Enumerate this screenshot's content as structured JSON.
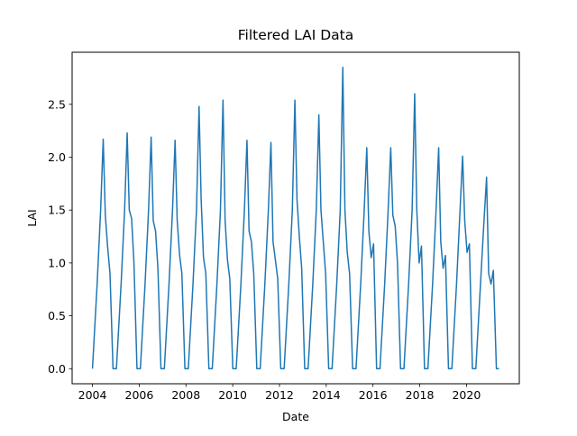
{
  "chart_data": {
    "type": "line",
    "title": "Filtered LAI Data",
    "x_label": "Date",
    "y_label": "LAI",
    "x": [
      2004.0,
      2004.2,
      2004.35,
      2004.46,
      2004.55,
      2004.65,
      2004.75,
      2004.88,
      2005.025,
      2005.225,
      2005.375,
      2005.485,
      2005.575,
      2005.675,
      2005.775,
      2005.905,
      2006.05,
      2006.25,
      2006.4,
      2006.51,
      2006.6,
      2006.7,
      2006.8,
      2006.93,
      2007.075,
      2007.275,
      2007.425,
      2007.535,
      2007.625,
      2007.725,
      2007.825,
      2007.955,
      2008.1,
      2008.3,
      2008.45,
      2008.56,
      2008.65,
      2008.75,
      2008.85,
      2008.98,
      2009.125,
      2009.325,
      2009.475,
      2009.585,
      2009.675,
      2009.775,
      2009.875,
      2010.005,
      2010.15,
      2010.35,
      2010.5,
      2010.61,
      2010.7,
      2010.8,
      2010.9,
      2011.03,
      2011.175,
      2011.375,
      2011.525,
      2011.635,
      2011.725,
      2011.825,
      2011.925,
      2012.055,
      2012.2,
      2012.4,
      2012.55,
      2012.66,
      2012.75,
      2012.85,
      2012.95,
      2013.08,
      2013.225,
      2013.425,
      2013.575,
      2013.685,
      2013.775,
      2013.875,
      2013.975,
      2014.105,
      2014.25,
      2014.45,
      2014.6,
      2014.71,
      2014.8,
      2014.9,
      2015.0,
      2015.13,
      2015.275,
      2015.475,
      2015.625,
      2015.735,
      2015.825,
      2015.925,
      2016.025,
      2016.155,
      2016.3,
      2016.5,
      2016.65,
      2016.76,
      2016.85,
      2016.95,
      2017.05,
      2017.18,
      2017.325,
      2017.525,
      2017.675,
      2017.785,
      2017.875,
      2017.975,
      2018.075,
      2018.205,
      2018.35,
      2018.55,
      2018.7,
      2018.81,
      2018.9,
      2019.0,
      2019.1,
      2019.23,
      2019.375,
      2019.575,
      2019.725,
      2019.835,
      2019.925,
      2020.025,
      2020.125,
      2020.255,
      2020.4,
      2020.6,
      2020.75,
      2020.86,
      2020.95,
      2021.05,
      2021.15,
      2021.28,
      2021.39
    ],
    "values": [
      0,
      0.8,
      1.5,
      2.17,
      1.45,
      1.15,
      0.9,
      0,
      0,
      0.8,
      1.5,
      2.23,
      1.5,
      1.42,
      1.0,
      0,
      0,
      0.8,
      1.5,
      2.19,
      1.4,
      1.3,
      0.95,
      0,
      0,
      0.8,
      1.5,
      2.16,
      1.4,
      1.08,
      0.9,
      0,
      0,
      0.8,
      1.5,
      2.48,
      1.6,
      1.05,
      0.9,
      0,
      0,
      0.8,
      1.5,
      2.54,
      1.4,
      1.03,
      0.85,
      0,
      0,
      0.8,
      1.5,
      2.16,
      1.3,
      1.2,
      0.9,
      0,
      0,
      0.8,
      1.5,
      2.14,
      1.2,
      1.03,
      0.85,
      0,
      0,
      0.8,
      1.5,
      2.54,
      1.6,
      1.25,
      0.95,
      0,
      0,
      0.8,
      1.5,
      2.4,
      1.5,
      1.2,
      0.9,
      0,
      0,
      0.8,
      1.5,
      2.85,
      1.5,
      1.1,
      0.9,
      0,
      0,
      0.8,
      1.5,
      2.09,
      1.3,
      1.05,
      1.18,
      0,
      0,
      0.8,
      1.5,
      2.09,
      1.45,
      1.35,
      1.0,
      0,
      0,
      0.8,
      1.5,
      2.6,
      1.5,
      1.0,
      1.16,
      0,
      0,
      0.8,
      1.5,
      2.09,
      1.2,
      0.95,
      1.07,
      0,
      0,
      0.8,
      1.5,
      2.01,
      1.4,
      1.1,
      1.18,
      0,
      0,
      0.8,
      1.4,
      1.81,
      0.9,
      0.8,
      0.93,
      0,
      0
    ],
    "color": "#1f77b4",
    "xlim": [
      2003.13,
      2022.26
    ],
    "xticks": [
      2004,
      2006,
      2008,
      2010,
      2012,
      2014,
      2016,
      2018,
      2020
    ],
    "ylim": [
      -0.1425,
      2.9925
    ],
    "yticks": [
      {
        "value": 0,
        "label": "0.0"
      },
      0.5,
      {
        "value": 1,
        "label": "1.0"
      },
      1.5,
      {
        "value": 2,
        "label": "2.0"
      },
      2.5
    ]
  }
}
